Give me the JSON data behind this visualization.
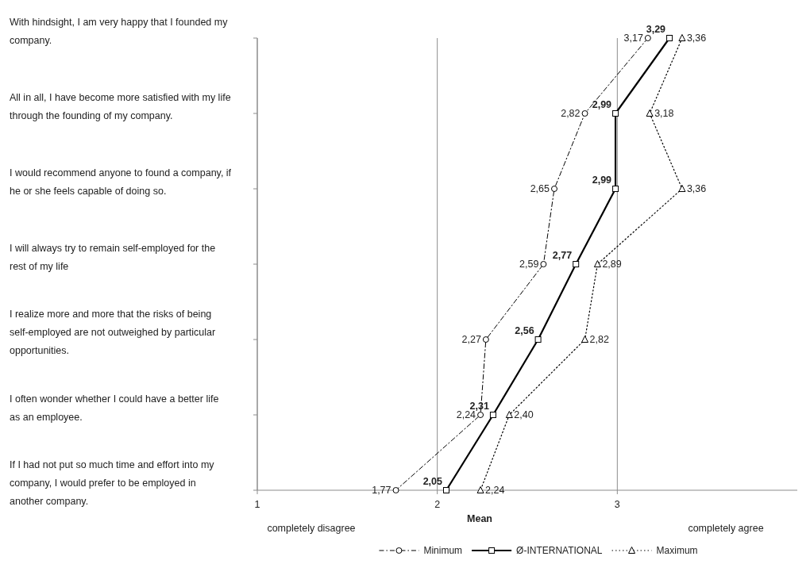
{
  "chart_data": {
    "type": "line",
    "orientation": "horizontal",
    "xlabel": "Mean",
    "categories": [
      "With hindsight, I am very happy that I founded my company.",
      "All in all, I have become more satisfied with my life through the founding of my company.",
      "I would recommend anyone to found a company, if he or she feels capable of doing so.",
      "I will always try to remain self-employed for the rest of my life",
      "I realize more and more that the risks of being self-employed are not outweighed by particular opportunities.",
      "I often wonder whether I could have a better life as an employee.",
      "If I had not put so much time and effort into my company, I would prefer to be employed in another company."
    ],
    "series": [
      {
        "name": "Minimum",
        "color": "#000000",
        "marker": "circle",
        "line_style": "dashed",
        "values": [
          3.17,
          2.82,
          2.65,
          2.59,
          2.27,
          2.24,
          1.77
        ],
        "value_labels": [
          "3,17",
          "2,82",
          "2,65",
          "2,59",
          "2,27",
          "2,24",
          "1,77"
        ]
      },
      {
        "name": "Ø-INTERNATIONAL",
        "color": "#000000",
        "marker": "square",
        "line_style": "solid",
        "values": [
          3.29,
          2.99,
          2.99,
          2.77,
          2.56,
          2.31,
          2.05
        ],
        "value_labels": [
          "3,29",
          "2,99",
          "2,99",
          "2,77",
          "2,56",
          "2,31",
          "2,05"
        ]
      },
      {
        "name": "Maximum",
        "color": "#000000",
        "marker": "triangle",
        "line_style": "dotted",
        "values": [
          3.36,
          3.18,
          3.36,
          2.89,
          2.82,
          2.4,
          2.24
        ],
        "value_labels": [
          "3,36",
          "3,18",
          "3,36",
          "2,89",
          "2,82",
          "2,40",
          "2,24"
        ]
      }
    ],
    "xlim": [
      1,
      4
    ],
    "xticks": [
      1,
      2,
      3
    ],
    "grid": "x",
    "legend": "bottom",
    "annotations": [
      "completely disagree",
      "completely agree"
    ]
  }
}
